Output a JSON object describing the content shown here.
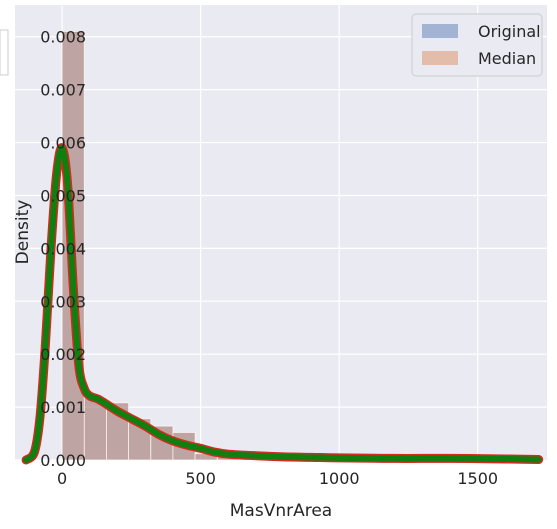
{
  "chart_data": {
    "type": "histogram",
    "xlabel": "MasVnrArea",
    "ylabel": "Density",
    "xlim": [
      -170,
      1750
    ],
    "ylim": [
      0,
      0.0086
    ],
    "xticks": [
      0,
      500,
      1000,
      1500
    ],
    "yticks": [
      "0.000",
      "0.001",
      "0.002",
      "0.003",
      "0.004",
      "0.005",
      "0.006",
      "0.007",
      "0.008"
    ],
    "grid": true,
    "legend": "top-right",
    "bin_width": 80,
    "bin_start": 0,
    "series": [
      {
        "name": "Original",
        "kind": "bars",
        "color": "#4c72b0",
        "values": [
          0.0081,
          0.00118,
          0.00108,
          0.00078,
          0.00064,
          0.00052,
          0.00012,
          9e-05,
          7e-05,
          6e-05,
          5e-05,
          4e-05,
          3e-05,
          3e-05,
          2e-05,
          2e-05,
          2e-05,
          1e-05,
          1e-05,
          1e-05,
          1e-05,
          1e-05
        ]
      },
      {
        "name": "Median",
        "kind": "bars",
        "color": "#dd8452",
        "values": [
          0.0081,
          0.00118,
          0.00108,
          0.00078,
          0.00064,
          0.00052,
          0.00012,
          9e-05,
          7e-05,
          6e-05,
          5e-05,
          4e-05,
          3e-05,
          3e-05,
          2e-05,
          2e-05,
          2e-05,
          1e-05,
          1e-05,
          1e-05,
          1e-05,
          1e-05
        ]
      }
    ],
    "kde": {
      "x": [
        -130,
        -100,
        -80,
        -60,
        -40,
        -20,
        0,
        20,
        40,
        60,
        80,
        100,
        130,
        170,
        200,
        250,
        300,
        350,
        400,
        450,
        500,
        550,
        600,
        700,
        800,
        900,
        1000,
        1200,
        1400,
        1600,
        1720
      ],
      "y": [
        0.0,
        0.00015,
        0.0008,
        0.0022,
        0.004,
        0.0054,
        0.0059,
        0.0052,
        0.0033,
        0.0018,
        0.00135,
        0.00121,
        0.00115,
        0.00102,
        0.00092,
        0.00078,
        0.00064,
        0.00048,
        0.00036,
        0.00028,
        0.00022,
        0.00015,
        0.00011,
        8e-05,
        6e-05,
        5e-05,
        4e-05,
        3e-05,
        3e-05,
        2e-05,
        1e-05
      ],
      "colors": {
        "outer": "#d42b1e",
        "inner": "#0f7f0f"
      }
    }
  }
}
